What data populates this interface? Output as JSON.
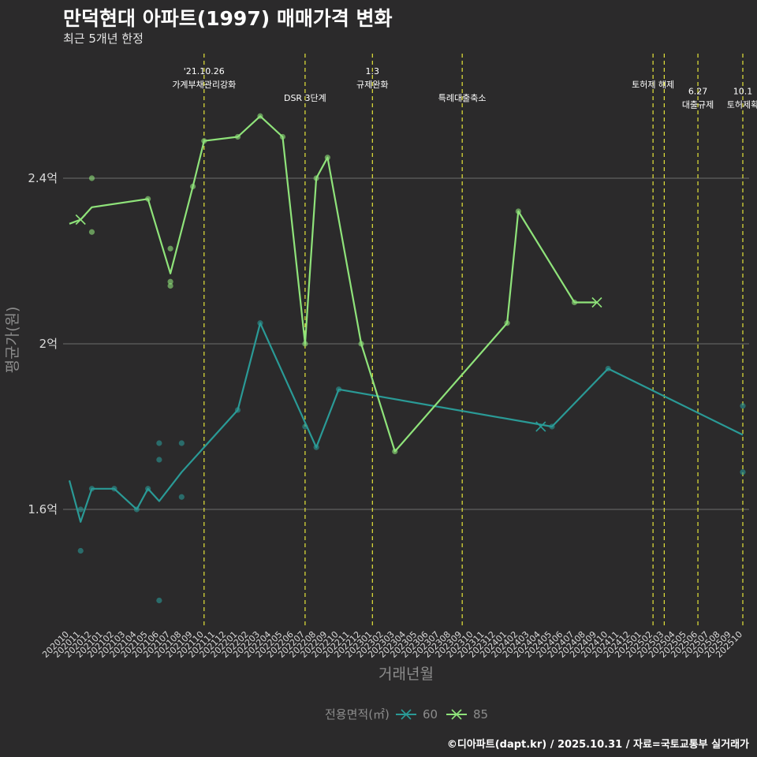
{
  "header": {
    "title": "만덕현대 아파트(1997) 매매가격 변화",
    "subtitle": "최근 5개년 한정"
  },
  "footer": {
    "caption": "©디아파트(dapt.kr) / 2025.10.31 / 자료=국토교통부 실거래가"
  },
  "colors": {
    "background": "#2b2a2b",
    "grid": "#6e6e6e",
    "vline": "#e5e53a",
    "series60": "#2a9a96",
    "series85": "#8fe37a"
  },
  "chart_data": {
    "type": "line",
    "xlabel": "거래년월",
    "ylabel": "평균가(원)",
    "x_categories": [
      "202010",
      "202011",
      "202012",
      "202101",
      "202102",
      "202103",
      "202104",
      "202105",
      "202106",
      "202107",
      "202108",
      "202109",
      "202110",
      "202111",
      "202112",
      "202201",
      "202202",
      "202203",
      "202204",
      "202205",
      "202206",
      "202207",
      "202208",
      "202209",
      "202210",
      "202211",
      "202212",
      "202301",
      "202302",
      "202303",
      "202304",
      "202305",
      "202306",
      "202307",
      "202308",
      "202309",
      "202310",
      "202311",
      "202312",
      "202401",
      "202402",
      "202403",
      "202404",
      "202405",
      "202406",
      "202407",
      "202408",
      "202409",
      "202410",
      "202411",
      "202412",
      "202501",
      "202502",
      "202503",
      "202504",
      "202505",
      "202506",
      "202507",
      "202508",
      "202509",
      "202510"
    ],
    "y_ticks": [
      {
        "value": 1.6,
        "label": "1.6억"
      },
      {
        "value": 2.0,
        "label": "2억"
      },
      {
        "value": 2.4,
        "label": "2.4억"
      }
    ],
    "ylim": [
      1.32,
      2.72
    ],
    "legend": {
      "title": "전용면적(㎡)",
      "position": "bottom"
    },
    "series": [
      {
        "name": "60",
        "line": [
          [
            0,
            1.67
          ],
          [
            1,
            1.57
          ],
          [
            2,
            1.65
          ],
          [
            4,
            1.65
          ],
          [
            6,
            1.6
          ],
          [
            7,
            1.65
          ],
          [
            8,
            1.62
          ],
          [
            10,
            1.69
          ],
          [
            15,
            1.84
          ],
          [
            17,
            2.05
          ],
          [
            22,
            1.75
          ],
          [
            24,
            1.89
          ],
          [
            43,
            1.8
          ],
          [
            48,
            1.94
          ],
          [
            60,
            1.78
          ]
        ],
        "points": [
          [
            1,
            1.5
          ],
          [
            1,
            1.6
          ],
          [
            2,
            1.65
          ],
          [
            4,
            1.65
          ],
          [
            6,
            1.6
          ],
          [
            7,
            1.65
          ],
          [
            8,
            1.76
          ],
          [
            8,
            1.72
          ],
          [
            8,
            1.38
          ],
          [
            10,
            1.76
          ],
          [
            10,
            1.63
          ],
          [
            15,
            1.84
          ],
          [
            17,
            2.05
          ],
          [
            21,
            1.8
          ],
          [
            22,
            1.75
          ],
          [
            24,
            1.89
          ],
          [
            43,
            1.8
          ],
          [
            48,
            1.94
          ],
          [
            60,
            1.85
          ],
          [
            60,
            1.69
          ]
        ],
        "markers": [
          [
            42,
            1.8
          ]
        ]
      },
      {
        "name": "85",
        "line": [
          [
            0,
            2.29
          ],
          [
            1,
            2.3
          ],
          [
            2,
            2.33
          ],
          [
            7,
            2.35
          ],
          [
            9,
            2.17
          ],
          [
            11,
            2.38
          ],
          [
            12,
            2.49
          ],
          [
            15,
            2.5
          ],
          [
            17,
            2.55
          ],
          [
            19,
            2.5
          ],
          [
            21,
            2.0
          ],
          [
            22,
            2.4
          ],
          [
            23,
            2.45
          ],
          [
            26,
            2.0
          ],
          [
            29,
            1.74
          ],
          [
            39,
            2.05
          ],
          [
            40,
            2.32
          ],
          [
            45,
            2.1
          ],
          [
            47,
            2.1
          ]
        ],
        "points": [
          [
            2,
            2.4
          ],
          [
            2,
            2.27
          ],
          [
            7,
            2.35
          ],
          [
            9,
            2.23
          ],
          [
            9,
            2.15
          ],
          [
            9,
            2.14
          ],
          [
            11,
            2.38
          ],
          [
            12,
            2.49
          ],
          [
            15,
            2.5
          ],
          [
            17,
            2.55
          ],
          [
            19,
            2.5
          ],
          [
            21,
            2.0
          ],
          [
            22,
            2.4
          ],
          [
            23,
            2.45
          ],
          [
            26,
            2.0
          ],
          [
            29,
            1.74
          ],
          [
            39,
            2.05
          ],
          [
            40,
            2.32
          ],
          [
            45,
            2.1
          ]
        ],
        "markers": [
          [
            1,
            2.3
          ],
          [
            47,
            2.1
          ]
        ]
      }
    ],
    "annotations": [
      {
        "x": 12,
        "lines": [
          "'21.10.26",
          "가계부채관리강화"
        ],
        "level": 0
      },
      {
        "x": 21,
        "lines": [
          "DSR 3단계"
        ],
        "level": 2
      },
      {
        "x": 27,
        "lines": [
          "1.3",
          "규제완화"
        ],
        "level": 0
      },
      {
        "x": 35,
        "lines": [
          "특례대출축소"
        ],
        "level": 2
      },
      {
        "x": 52,
        "lines": [
          "토허제 해제"
        ],
        "level": 1
      },
      {
        "x": 53,
        "lines": [],
        "level": 0
      },
      {
        "x": 56,
        "lines": [
          "6.27",
          "대출규제"
        ],
        "level": 1.5
      },
      {
        "x": 60,
        "lines": [
          "10.1",
          "토허제확"
        ],
        "level": 1.5
      }
    ]
  }
}
